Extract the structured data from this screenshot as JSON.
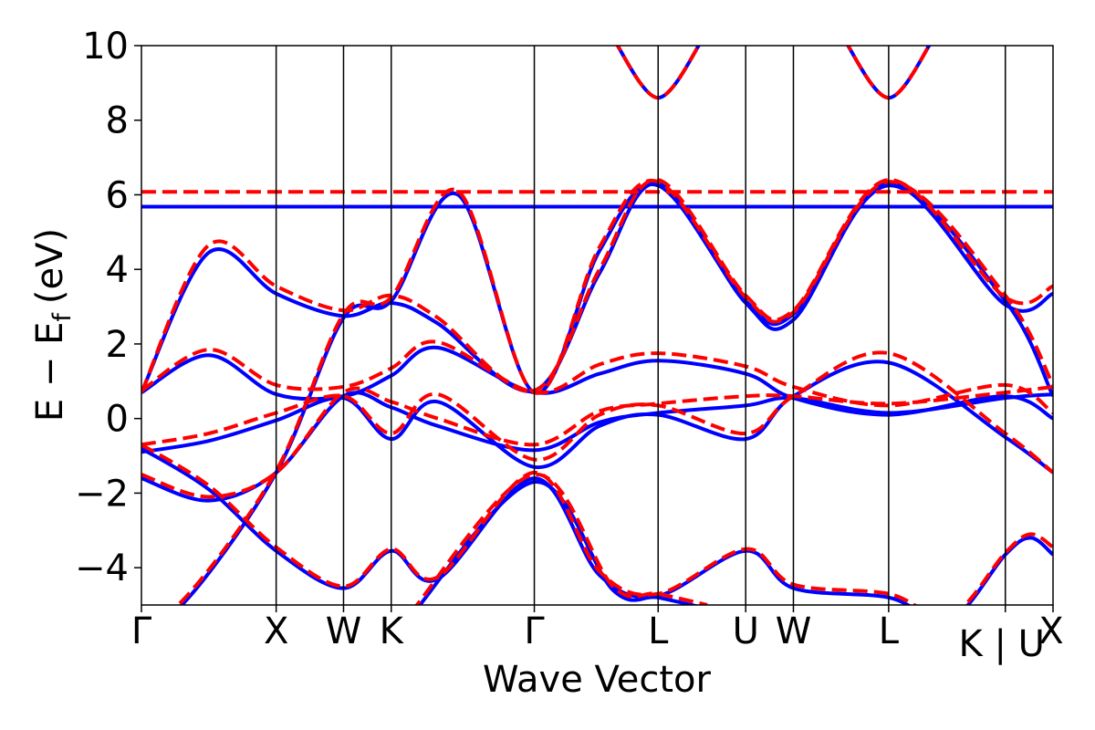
{
  "chart_data": {
    "type": "line",
    "title": "",
    "xlabel": "Wave Vector",
    "ylabel": "E − E",
    "ylabel_sub": "f",
    "ylabel_unit": "(eV)",
    "ylim": [
      -5,
      10
    ],
    "xlim": [
      0,
      10
    ],
    "grid": false,
    "legend": "none",
    "y_ticks": [
      {
        "value": -4,
        "label": "−4"
      },
      {
        "value": -2,
        "label": "−2"
      },
      {
        "value": 0,
        "label": "0"
      },
      {
        "value": 2,
        "label": "2"
      },
      {
        "value": 4,
        "label": "4"
      },
      {
        "value": 6,
        "label": "6"
      },
      {
        "value": 8,
        "label": "8"
      },
      {
        "value": 10,
        "label": "10"
      }
    ],
    "k_points": [
      {
        "x": 0,
        "label": "Γ"
      },
      {
        "x": 1.0,
        "label": "X"
      },
      {
        "x": 1.5,
        "label": "W"
      },
      {
        "x": 1.854,
        "label": "K"
      },
      {
        "x": 2.916,
        "label": "Γ"
      },
      {
        "x": 3.835,
        "label": "L"
      },
      {
        "x": 4.485,
        "label": "U"
      },
      {
        "x": 4.839,
        "label": "W"
      },
      {
        "x": 5.546,
        "label": "L"
      },
      {
        "x": 6.412,
        "label": "K | U"
      },
      {
        "x": 6.766,
        "label": "X"
      }
    ],
    "k_label_gap": [
      6.412,
      6.766
    ],
    "series": [
      {
        "color": "#0000ff",
        "dash": "solid",
        "bands": [
          [
            [
              0,
              -0.8
            ],
            [
              0.5,
              -1.9
            ],
            [
              1.0,
              -3.55
            ],
            [
              1.5,
              -4.55
            ],
            [
              1.854,
              -3.55
            ],
            [
              2.2,
              -4.3
            ],
            [
              2.916,
              -1.6
            ],
            [
              3.4,
              -4.2
            ],
            [
              3.835,
              -4.75
            ],
            [
              4.485,
              -3.55
            ],
            [
              4.839,
              -4.55
            ],
            [
              5.546,
              -4.8
            ],
            [
              6.0,
              -5.4
            ],
            [
              6.412,
              -3.65
            ],
            [
              6.6,
              -3.2
            ],
            [
              6.766,
              -3.65
            ]
          ],
          [
            [
              0,
              -1.6
            ],
            [
              0.5,
              -2.2
            ],
            [
              1.0,
              -1.45
            ],
            [
              1.5,
              0.6
            ],
            [
              1.854,
              0.3
            ],
            [
              2.2,
              -0.2
            ],
            [
              2.916,
              -0.85
            ],
            [
              3.4,
              -0.1
            ],
            [
              3.835,
              0.15
            ],
            [
              4.485,
              0.35
            ],
            [
              4.839,
              0.55
            ],
            [
              5.546,
              0.15
            ],
            [
              6.412,
              0.55
            ],
            [
              6.766,
              0.65
            ]
          ],
          [
            [
              0,
              -0.9
            ],
            [
              0.5,
              -0.6
            ],
            [
              1.0,
              -0.05
            ],
            [
              1.5,
              0.55
            ],
            [
              1.854,
              -0.55
            ],
            [
              2.2,
              0.45
            ],
            [
              2.916,
              -1.3
            ],
            [
              3.4,
              -0.2
            ],
            [
              3.835,
              0.1
            ],
            [
              4.485,
              -0.55
            ],
            [
              4.839,
              0.6
            ],
            [
              5.546,
              1.5
            ],
            [
              6.412,
              -0.5
            ],
            [
              6.766,
              -1.45
            ]
          ],
          [
            [
              0,
              0.7
            ],
            [
              0.5,
              1.7
            ],
            [
              1.0,
              0.65
            ],
            [
              1.5,
              0.6
            ],
            [
              1.854,
              1.15
            ],
            [
              2.2,
              1.9
            ],
            [
              2.916,
              0.7
            ],
            [
              3.4,
              1.2
            ],
            [
              3.835,
              1.55
            ],
            [
              4.485,
              1.2
            ],
            [
              4.839,
              0.55
            ],
            [
              5.546,
              0.1
            ],
            [
              6.412,
              0.6
            ],
            [
              6.766,
              0.0
            ]
          ],
          [
            [
              0,
              0.7
            ],
            [
              0.5,
              4.45
            ],
            [
              1.0,
              3.35
            ],
            [
              1.5,
              2.75
            ],
            [
              1.854,
              3.1
            ],
            [
              2.2,
              2.55
            ],
            [
              2.916,
              0.75
            ],
            [
              3.4,
              3.9
            ],
            [
              3.835,
              6.3
            ],
            [
              4.485,
              3.1
            ],
            [
              4.839,
              2.65
            ],
            [
              5.546,
              6.3
            ],
            [
              6.412,
              3.05
            ],
            [
              6.766,
              3.35
            ]
          ],
          [
            [
              0,
              -5.2
            ],
            [
              0.3,
              -5.0
            ],
            [
              1.0,
              -1.45
            ],
            [
              1.5,
              2.7
            ],
            [
              1.854,
              3.15
            ],
            [
              2.35,
              6.0
            ],
            [
              2.916,
              0.7
            ],
            [
              3.4,
              4.5
            ],
            [
              3.835,
              6.25
            ],
            [
              4.485,
              3.15
            ],
            [
              4.839,
              2.8
            ],
            [
              5.546,
              6.25
            ],
            [
              6.412,
              3.15
            ],
            [
              6.766,
              0.6
            ]
          ],
          [
            [
              0,
              5.68
            ],
            [
              6.766,
              5.68
            ]
          ],
          [
            [
              3.5,
              10.2
            ],
            [
              3.835,
              8.6
            ],
            [
              4.17,
              10.2
            ]
          ],
          [
            [
              5.21,
              10.2
            ],
            [
              5.546,
              8.6
            ],
            [
              5.88,
              10.2
            ]
          ],
          [
            [
              2.0,
              -5.3
            ],
            [
              2.916,
              -1.7
            ],
            [
              3.5,
              -4.6
            ],
            [
              3.835,
              -4.8
            ],
            [
              4.2,
              -5.1
            ]
          ]
        ]
      },
      {
        "color": "#ff0000",
        "dash": "dashed",
        "bands": [
          [
            [
              0,
              -0.7
            ],
            [
              0.5,
              -1.8
            ],
            [
              1.0,
              -3.45
            ],
            [
              1.5,
              -4.5
            ],
            [
              1.854,
              -3.5
            ],
            [
              2.2,
              -4.25
            ],
            [
              2.916,
              -1.45
            ],
            [
              3.4,
              -4.1
            ],
            [
              3.835,
              -4.7
            ],
            [
              4.485,
              -3.5
            ],
            [
              4.839,
              -4.45
            ],
            [
              5.546,
              -4.7
            ],
            [
              6.0,
              -5.3
            ],
            [
              6.412,
              -3.6
            ],
            [
              6.6,
              -3.1
            ],
            [
              6.766,
              -3.45
            ]
          ],
          [
            [
              0,
              -1.5
            ],
            [
              0.5,
              -2.1
            ],
            [
              1.0,
              -1.45
            ],
            [
              1.5,
              0.7
            ],
            [
              1.854,
              0.45
            ],
            [
              2.2,
              0.0
            ],
            [
              2.916,
              -0.7
            ],
            [
              3.4,
              0.2
            ],
            [
              3.835,
              0.4
            ],
            [
              4.485,
              0.6
            ],
            [
              4.839,
              0.6
            ],
            [
              5.546,
              0.4
            ],
            [
              6.412,
              0.7
            ],
            [
              6.766,
              0.85
            ]
          ],
          [
            [
              0,
              -0.7
            ],
            [
              0.5,
              -0.4
            ],
            [
              1.0,
              0.15
            ],
            [
              1.5,
              0.6
            ],
            [
              1.854,
              -0.4
            ],
            [
              2.2,
              0.65
            ],
            [
              2.916,
              -1.1
            ],
            [
              3.4,
              0.1
            ],
            [
              3.835,
              0.35
            ],
            [
              4.485,
              -0.4
            ],
            [
              4.839,
              0.6
            ],
            [
              5.546,
              1.75
            ],
            [
              6.412,
              -0.4
            ],
            [
              6.766,
              -1.45
            ]
          ],
          [
            [
              0,
              0.75
            ],
            [
              0.5,
              1.85
            ],
            [
              1.0,
              0.9
            ],
            [
              1.5,
              0.85
            ],
            [
              1.854,
              1.35
            ],
            [
              2.2,
              2.05
            ],
            [
              2.916,
              0.7
            ],
            [
              3.4,
              1.45
            ],
            [
              3.835,
              1.75
            ],
            [
              4.485,
              1.4
            ],
            [
              4.839,
              0.85
            ],
            [
              5.546,
              0.35
            ],
            [
              6.412,
              0.9
            ],
            [
              6.766,
              0.15
            ]
          ],
          [
            [
              0,
              0.7
            ],
            [
              0.5,
              4.65
            ],
            [
              1.0,
              3.55
            ],
            [
              1.5,
              2.9
            ],
            [
              1.854,
              3.3
            ],
            [
              2.2,
              2.7
            ],
            [
              2.916,
              0.75
            ],
            [
              3.4,
              4.0
            ],
            [
              3.835,
              6.4
            ],
            [
              4.485,
              3.3
            ],
            [
              4.839,
              2.9
            ],
            [
              5.546,
              6.4
            ],
            [
              6.412,
              3.25
            ],
            [
              6.766,
              3.55
            ]
          ],
          [
            [
              0,
              -5.1
            ],
            [
              0.3,
              -4.9
            ],
            [
              1.0,
              -1.4
            ],
            [
              1.5,
              2.8
            ],
            [
              1.854,
              3.25
            ],
            [
              2.35,
              6.1
            ],
            [
              2.916,
              0.7
            ],
            [
              3.4,
              4.6
            ],
            [
              3.835,
              6.35
            ],
            [
              4.485,
              3.25
            ],
            [
              4.839,
              2.85
            ],
            [
              5.546,
              6.35
            ],
            [
              6.412,
              3.3
            ],
            [
              6.766,
              0.9
            ]
          ],
          [
            [
              0,
              6.08
            ],
            [
              6.766,
              6.08
            ]
          ],
          [
            [
              3.5,
              10.2
            ],
            [
              3.835,
              8.6
            ],
            [
              4.17,
              10.2
            ]
          ],
          [
            [
              5.21,
              10.2
            ],
            [
              5.546,
              8.6
            ],
            [
              5.88,
              10.2
            ]
          ],
          [
            [
              2.0,
              -5.2
            ],
            [
              2.916,
              -1.5
            ],
            [
              3.5,
              -4.5
            ],
            [
              3.835,
              -4.7
            ],
            [
              4.2,
              -5.0
            ]
          ]
        ]
      }
    ]
  }
}
